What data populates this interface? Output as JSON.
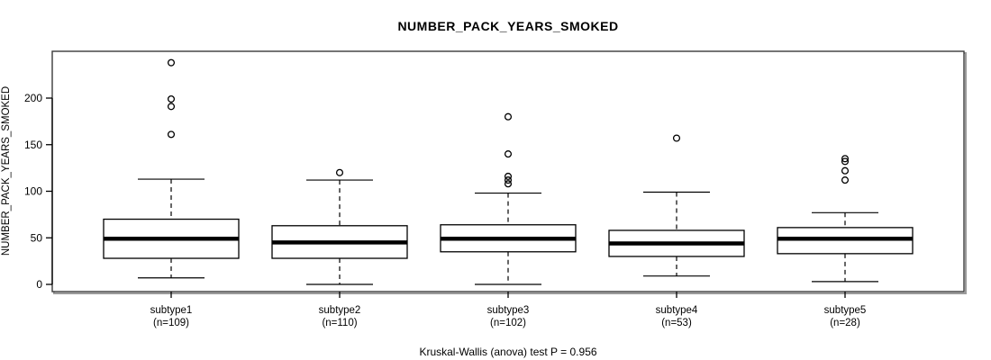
{
  "chart_data": {
    "type": "boxplot",
    "title": "NUMBER_PACK_YEARS_SMOKED",
    "ylabel": "NUMBER_PACK_YEARS_SMOKED",
    "caption": "Kruskal-Wallis (anova) test P = 0.956",
    "test_name": "Kruskal-Wallis (anova) test",
    "p_value": "0.956",
    "ylim": [
      0,
      245
    ],
    "yticks": [
      0,
      50,
      100,
      150,
      200
    ],
    "ytick_labels": [
      "0",
      "50",
      "100",
      "150",
      "200"
    ],
    "grid": false,
    "legend": false,
    "groups": [
      {
        "label": "subtype1",
        "n_label": "(n=109)",
        "n": 109,
        "whisker_low": 7,
        "q1": 28,
        "median": 49,
        "q3": 70,
        "whisker_high": 113,
        "outliers": [
          161,
          191,
          199,
          238
        ]
      },
      {
        "label": "subtype2",
        "n_label": "(n=110)",
        "n": 110,
        "whisker_low": 0,
        "q1": 28,
        "median": 45,
        "q3": 63,
        "whisker_high": 112,
        "outliers": [
          120
        ]
      },
      {
        "label": "subtype3",
        "n_label": "(n=102)",
        "n": 102,
        "whisker_low": 0,
        "q1": 35,
        "median": 49,
        "q3": 64,
        "whisker_high": 98,
        "outliers": [
          108,
          112,
          116,
          140,
          180
        ]
      },
      {
        "label": "subtype4",
        "n_label": "(n=53)",
        "n": 53,
        "whisker_low": 9,
        "q1": 30,
        "median": 44,
        "q3": 58,
        "whisker_high": 99,
        "outliers": [
          157
        ]
      },
      {
        "label": "subtype5",
        "n_label": "(n=28)",
        "n": 28,
        "whisker_low": 3,
        "q1": 33,
        "median": 49,
        "q3": 61,
        "whisker_high": 77,
        "outliers": [
          112,
          122,
          132,
          135
        ]
      }
    ],
    "colors": {
      "box_fill": "#ffffff",
      "box_stroke": "#000000",
      "median": "#000000",
      "frame": "#3a3a3a",
      "frame_shadow": "#9a9a9a",
      "text": "#000000"
    }
  }
}
